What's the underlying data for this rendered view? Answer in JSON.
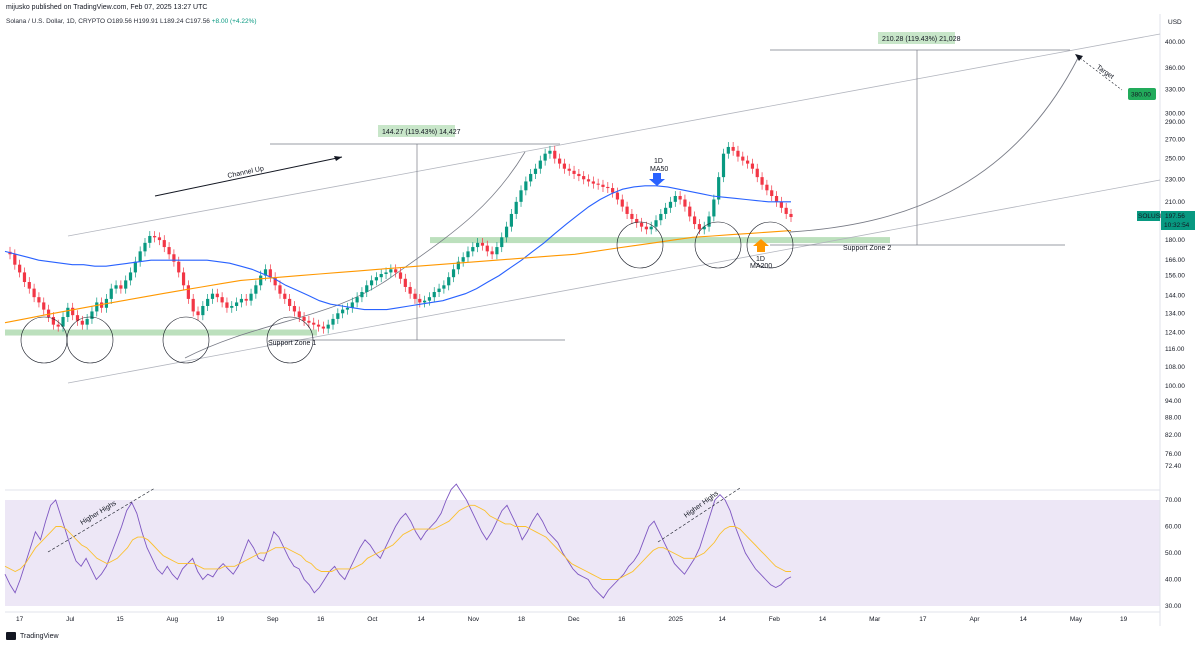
{
  "header": {
    "publisher_line": "mijusko published on TradingView.com, Feb 07, 2025 13:27 UTC",
    "symbol_line": "Solana / U.S. Dollar, 1D, CRYPTO",
    "ohlc": "O189.56 H199.91 L189.24 C197.56",
    "change": "+8.00 (+4.22%)"
  },
  "footer": {
    "brand": "TradingView"
  },
  "chart_data": {
    "type": "candlestick",
    "title": "Solana / U.S. Dollar, 1D, CRYPTO",
    "price_axis": {
      "unit_label": "USD",
      "scale": "log",
      "ticks": [
        400,
        360,
        330,
        300,
        290,
        270,
        250,
        230,
        210,
        190,
        180,
        166,
        156,
        144,
        134,
        124,
        116,
        108,
        100,
        94,
        88,
        82,
        76,
        72.4
      ],
      "tick_labels": [
        "400.00",
        "360.00",
        "330.00",
        "300.00",
        "290.00",
        "270.00",
        "250.00",
        "230.00",
        "210.00",
        "190.00",
        "180.00",
        "166.00",
        "156.00",
        "144.00",
        "134.00",
        "124.00",
        "116.00",
        "108.00",
        "100.00",
        "94.00",
        "88.00",
        "82.00",
        "76.00",
        "72.40"
      ]
    },
    "rsi_axis": {
      "ticks": [
        70,
        60,
        50,
        40,
        30
      ],
      "tick_labels": [
        "70.00",
        "60.00",
        "50.00",
        "40.00",
        "30.00"
      ],
      "band": [
        30,
        70
      ]
    },
    "time_axis_labels": [
      "17",
      "Jul",
      "15",
      "Aug",
      "19",
      "Sep",
      "16",
      "Oct",
      "14",
      "Nov",
      "18",
      "Dec",
      "16",
      "2025",
      "14",
      "Feb",
      "14",
      "Mar",
      "17",
      "Apr",
      "14",
      "May",
      "19"
    ],
    "current_price": {
      "symbol": "SOLUSD",
      "value": "197.56",
      "countdown": "10:32:54"
    },
    "target_label": "380.00",
    "closes": [
      170,
      163,
      158,
      152,
      148,
      143,
      140,
      136,
      132,
      128,
      127,
      132,
      137,
      133,
      130,
      128,
      131,
      135,
      140,
      137,
      142,
      148,
      150,
      148,
      153,
      158,
      165,
      172,
      178,
      183,
      182,
      180,
      175,
      170,
      165,
      158,
      150,
      142,
      135,
      133,
      138,
      142,
      145,
      143,
      140,
      137,
      138,
      140,
      142,
      141,
      145,
      150,
      156,
      160,
      155,
      150,
      145,
      142,
      138,
      135,
      132,
      130,
      129,
      128,
      127,
      126,
      128,
      131,
      134,
      136,
      137,
      140,
      143,
      146,
      150,
      153,
      155,
      157,
      158,
      160,
      158,
      154,
      149,
      145,
      142,
      140,
      141,
      143,
      146,
      148,
      150,
      155,
      160,
      165,
      168,
      172,
      175,
      178,
      176,
      172,
      170,
      175,
      182,
      190,
      200,
      210,
      220,
      228,
      235,
      240,
      248,
      255,
      258,
      250,
      245,
      240,
      238,
      235,
      233,
      230,
      228,
      226,
      225,
      223,
      222,
      218,
      212,
      206,
      200,
      196,
      193,
      190,
      188,
      190,
      195,
      200,
      205,
      210,
      215,
      212,
      206,
      198,
      192,
      188,
      190,
      198,
      212,
      232,
      255,
      262,
      258,
      252,
      248,
      245,
      240,
      232,
      225,
      220,
      215,
      210,
      205,
      200,
      197.56
    ],
    "ma50": [
      172,
      170,
      168,
      166,
      165,
      164,
      163,
      163,
      162,
      162,
      163,
      164,
      165,
      166,
      166,
      166,
      166,
      166,
      166,
      165,
      164,
      162,
      160,
      157,
      154,
      150,
      147,
      144,
      141,
      139,
      138,
      137,
      136,
      136,
      136,
      137,
      138,
      139,
      140,
      141,
      143,
      145,
      148,
      152,
      156,
      161,
      166,
      172,
      178,
      185,
      192,
      199,
      206,
      212,
      217,
      221,
      223,
      224,
      224,
      223,
      221,
      219,
      217,
      215,
      214,
      213,
      212,
      211,
      210,
      210,
      210
    ],
    "ma200": [
      129,
      131,
      133,
      135,
      137,
      139,
      141,
      143,
      145,
      147,
      149,
      151,
      153,
      154,
      155,
      156,
      157,
      158,
      159,
      160,
      161,
      162,
      163,
      164,
      165,
      166,
      167,
      168,
      169,
      170,
      172,
      174,
      176,
      178,
      180,
      182,
      183,
      184,
      185,
      186,
      187
    ],
    "rsi": [
      42,
      38,
      35,
      40,
      46,
      52,
      58,
      55,
      62,
      68,
      70,
      64,
      58,
      52,
      47,
      45,
      48,
      44,
      40,
      42,
      45,
      50,
      55,
      60,
      66,
      69,
      65,
      58,
      52,
      48,
      44,
      42,
      45,
      42,
      40,
      44,
      46,
      48,
      43,
      40,
      42,
      41,
      44,
      46,
      44,
      42,
      45,
      50,
      55,
      52,
      48,
      47,
      52,
      58,
      56,
      52,
      48,
      45,
      44,
      40,
      38,
      35,
      37,
      40,
      43,
      45,
      42,
      40,
      44,
      48,
      52,
      55,
      53,
      50,
      48,
      52,
      56,
      60,
      63,
      65,
      62,
      58,
      55,
      58,
      60,
      62,
      65,
      70,
      74,
      76,
      73,
      70,
      66,
      62,
      58,
      55,
      58,
      62,
      66,
      68,
      64,
      60,
      55,
      58,
      62,
      65,
      62,
      58,
      56,
      54,
      50,
      47,
      44,
      42,
      41,
      40,
      37,
      35,
      33,
      36,
      38,
      40,
      42,
      45,
      47,
      50,
      55,
      60,
      62,
      58,
      54,
      50,
      46,
      44,
      42,
      45,
      48,
      52,
      58,
      64,
      70,
      72,
      70,
      66,
      60,
      55,
      50,
      47,
      44,
      42,
      40,
      38,
      37,
      38,
      40,
      41
    ],
    "rsi_ma": [
      45,
      44,
      43,
      44,
      46,
      49,
      52,
      54,
      56,
      58,
      60,
      60,
      59,
      57,
      55,
      53,
      52,
      50,
      48,
      47,
      46,
      47,
      48,
      50,
      52,
      55,
      56,
      56,
      55,
      53,
      51,
      49,
      48,
      47,
      46,
      46,
      46,
      46,
      45,
      44,
      44,
      44,
      44,
      45,
      45,
      45,
      46,
      47,
      48,
      49,
      50,
      50,
      51,
      52,
      52,
      52,
      51,
      50,
      49,
      47,
      46,
      44,
      43,
      43,
      43,
      44,
      44,
      44,
      44,
      45,
      46,
      48,
      49,
      50,
      51,
      52,
      53,
      55,
      57,
      58,
      59,
      59,
      59,
      59,
      59,
      60,
      61,
      62,
      64,
      66,
      67,
      68,
      68,
      67,
      66,
      64,
      63,
      62,
      61,
      61,
      60,
      60,
      60,
      59,
      58,
      57,
      56,
      54,
      52,
      50,
      48,
      46,
      45,
      44,
      43,
      42,
      41,
      40,
      40,
      40,
      40,
      41,
      42,
      43,
      45,
      47,
      49,
      51,
      52,
      52,
      51,
      50,
      49,
      48,
      48,
      48,
      49,
      50,
      52,
      54,
      57,
      59,
      60,
      60,
      59,
      57,
      55,
      53,
      51,
      49,
      47,
      45,
      44,
      43,
      43
    ],
    "annotations": [
      {
        "text": "Channel Up"
      },
      {
        "text": "144.27 (119.43%) 14,427"
      },
      {
        "text": "210.28 (119.43%) 21,028"
      },
      {
        "text": "Target"
      },
      {
        "text": "1D MA50"
      },
      {
        "text": "1D MA200"
      },
      {
        "text": "Support Zone 1"
      },
      {
        "text": "Support Zone 2"
      },
      {
        "text": "Higher Highs"
      },
      {
        "text": "Higher Highs"
      }
    ],
    "colors": {
      "up": "#089981",
      "down": "#f23645",
      "ma50": "#2962ff",
      "ma200": "#ff9800",
      "rsi": "#7e57c2",
      "rsi_ma": "#fbc02d",
      "zone": "#a5d6a7",
      "rsi_band": "#ede7f6",
      "target_badge": "#22ab5b"
    }
  }
}
